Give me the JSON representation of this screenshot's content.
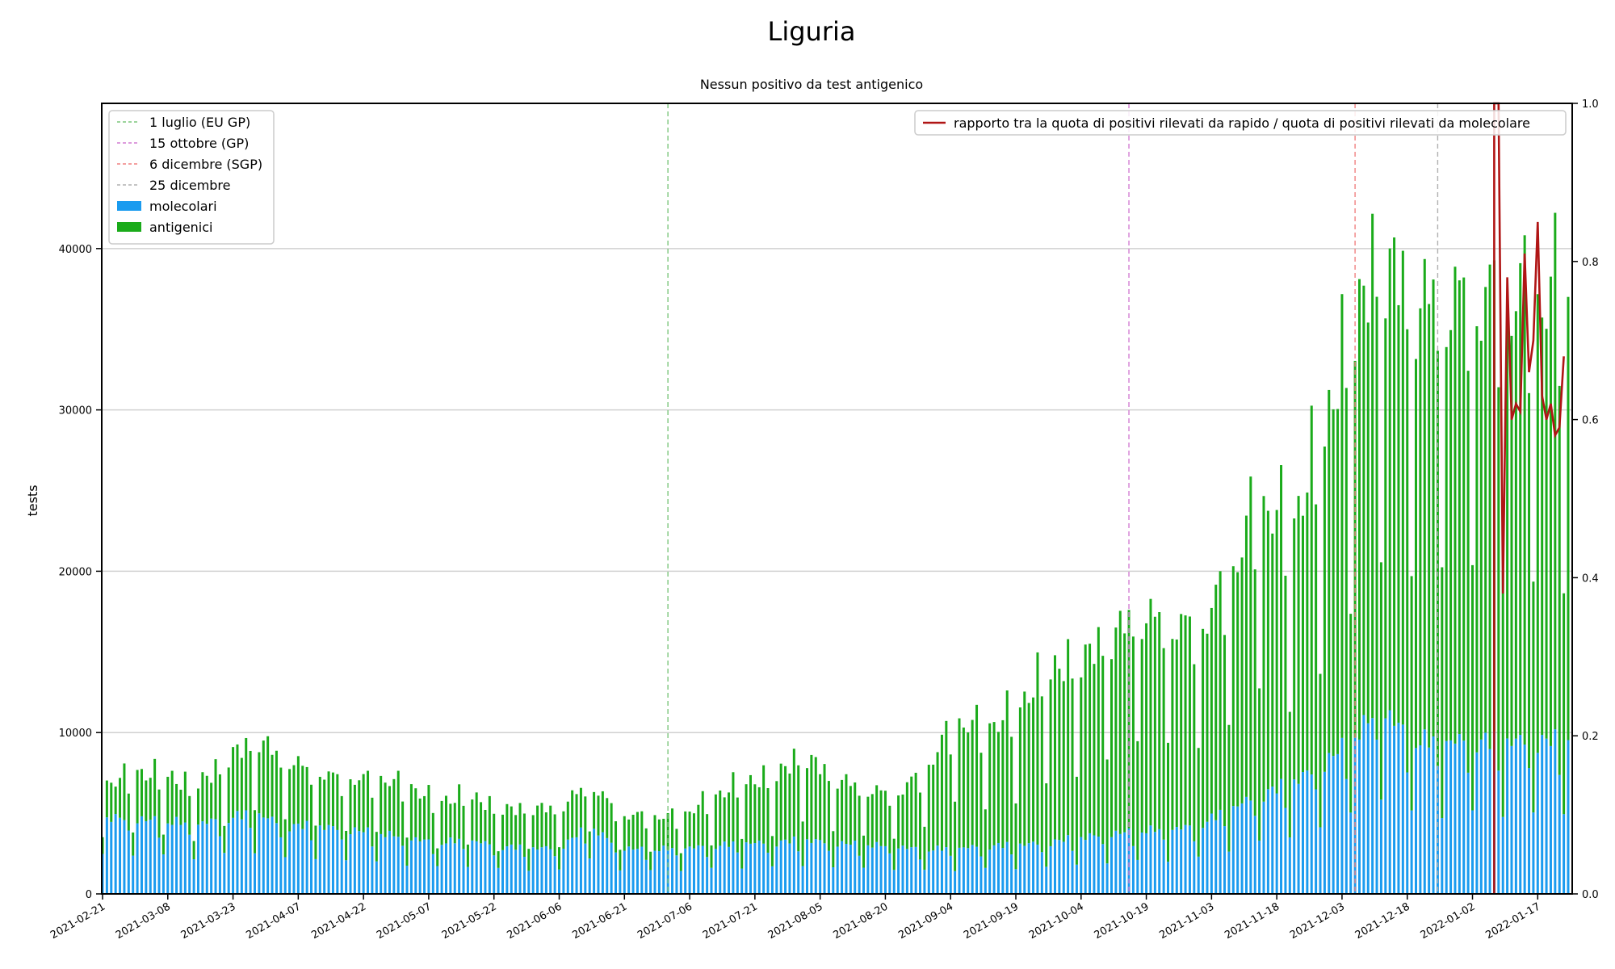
{
  "chart_data": {
    "type": "bar",
    "title": "Liguria",
    "subtitle": "Nessun positivo da test antigenico",
    "ylabel": "tests",
    "ylim": [
      0,
      49000
    ],
    "y2lim": [
      0,
      1.0
    ],
    "yticks": [
      0,
      10000,
      20000,
      30000,
      40000
    ],
    "y2ticks": [
      "0.0",
      "0.2",
      "0.4",
      "0.6",
      "0.8",
      "1.0"
    ],
    "x_start": "2021-02-21",
    "x_end": "2022-01-24",
    "xticks": [
      "2021-02-21",
      "2021-03-08",
      "2021-03-23",
      "2021-04-07",
      "2021-04-22",
      "2021-05-07",
      "2021-05-22",
      "2021-06-06",
      "2021-06-21",
      "2021-07-06",
      "2021-07-21",
      "2021-08-05",
      "2021-08-20",
      "2021-09-04",
      "2021-09-19",
      "2021-10-04",
      "2021-10-19",
      "2021-11-03",
      "2021-11-18",
      "2021-12-03",
      "2021-12-18",
      "2022-01-02",
      "2022-01-17"
    ],
    "grid": "y",
    "stacked_series": [
      {
        "name": "molecolari",
        "color": "#1a9bef"
      },
      {
        "name": "antigenici",
        "color": "#1aab1a"
      }
    ],
    "total_tests_weekly": [
      6500,
      7300,
      7200,
      6400,
      8000,
      9500,
      8200,
      7400,
      6900,
      7000,
      6600,
      5500,
      6000,
      5100,
      5200,
      5200,
      6800,
      4800,
      4700,
      4700,
      5800,
      6700,
      7000,
      8500,
      7100,
      6400,
      6000,
      7400,
      10500,
      10000,
      11000,
      13500,
      14000,
      15500,
      17000,
      16500,
      16000,
      19000,
      24000,
      22000,
      27000,
      34000,
      39000,
      36000
    ],
    "molecular_tests_weekly": [
      4500,
      4400,
      4300,
      4100,
      4400,
      4800,
      4000,
      4000,
      3800,
      3600,
      3300,
      3000,
      3200,
      2800,
      2700,
      2700,
      4000,
      2700,
      2600,
      2700,
      2800,
      3000,
      3000,
      3200,
      3000,
      2900,
      2800,
      2600,
      2700,
      2800,
      2900,
      3000,
      3300,
      3500,
      3700,
      3800,
      4000,
      5000,
      5800,
      6500,
      7500,
      9000,
      11000,
      9000
    ],
    "events": [
      {
        "label": "1 luglio (EU GP)",
        "date": "2021-07-01",
        "color": "#7cc57c"
      },
      {
        "label": "15 ottobre (GP)",
        "date": "2021-10-15",
        "color": "#d27cd2"
      },
      {
        "label": "6 dicembre (SGP)",
        "date": "2021-12-06",
        "color": "#f08080"
      },
      {
        "label": "25 dicembre",
        "date": "2021-12-25",
        "color": "#b0b0b0"
      }
    ],
    "ratio_series": {
      "name": "rapporto tra la quota di positivi rilevati da rapido / quota di positivi rilevati da molecolare",
      "color": "#b01515",
      "points": [
        [
          "2022-01-07",
          0.0
        ],
        [
          "2022-01-07",
          1.0
        ],
        [
          "2022-01-08",
          1.0
        ],
        [
          "2022-01-09",
          0.38
        ],
        [
          "2022-01-10",
          0.78
        ],
        [
          "2022-01-11",
          0.6
        ],
        [
          "2022-01-12",
          0.62
        ],
        [
          "2022-01-13",
          0.61
        ],
        [
          "2022-01-14",
          0.81
        ],
        [
          "2022-01-15",
          0.66
        ],
        [
          "2022-01-16",
          0.7
        ],
        [
          "2022-01-17",
          0.85
        ],
        [
          "2022-01-18",
          0.63
        ],
        [
          "2022-01-19",
          0.6
        ],
        [
          "2022-01-20",
          0.62
        ],
        [
          "2022-01-21",
          0.58
        ],
        [
          "2022-01-22",
          0.59
        ],
        [
          "2022-01-23",
          0.68
        ]
      ]
    },
    "legend_left": [
      "1 luglio (EU GP)",
      "15 ottobre (GP)",
      "6 dicembre (SGP)",
      "25 dicembre",
      "molecolari",
      "antigenici"
    ],
    "legend_left_position": "upper-left",
    "legend_right_position": "upper-right"
  }
}
